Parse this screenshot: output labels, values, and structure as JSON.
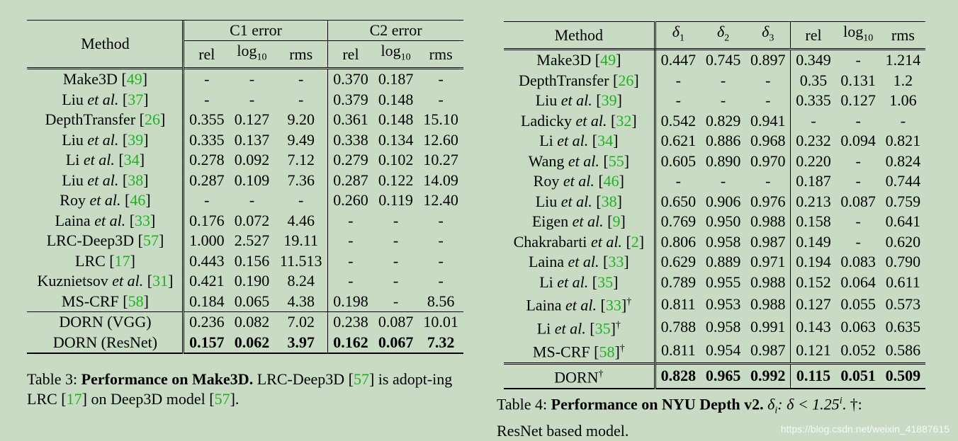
{
  "table3": {
    "method_header": "Method",
    "group1": "C1 error",
    "group2": "C2 error",
    "cols": [
      "rel",
      "log",
      "rms",
      "rel",
      "log",
      "rms"
    ],
    "log_sub": "10",
    "rows": [
      {
        "name": "Make3D",
        "etal": "",
        "ref": "49",
        "vals": [
          "-",
          "-",
          "-",
          "0.370",
          "0.187",
          "-"
        ]
      },
      {
        "name": "Liu",
        "etal": "et al.",
        "ref": "37",
        "vals": [
          "-",
          "-",
          "-",
          "0.379",
          "0.148",
          "-"
        ]
      },
      {
        "name": "DepthTransfer",
        "etal": "",
        "ref": "26",
        "vals": [
          "0.355",
          "0.127",
          "9.20",
          "0.361",
          "0.148",
          "15.10"
        ]
      },
      {
        "name": "Liu",
        "etal": "et al.",
        "ref": "39",
        "vals": [
          "0.335",
          "0.137",
          "9.49",
          "0.338",
          "0.134",
          "12.60"
        ]
      },
      {
        "name": "Li",
        "etal": "et al.",
        "ref": "34",
        "vals": [
          "0.278",
          "0.092",
          "7.12",
          "0.279",
          "0.102",
          "10.27"
        ]
      },
      {
        "name": "Liu",
        "etal": "et al.",
        "ref": "38",
        "vals": [
          "0.287",
          "0.109",
          "7.36",
          "0.287",
          "0.122",
          "14.09"
        ]
      },
      {
        "name": "Roy",
        "etal": "et al.",
        "ref": "46",
        "vals": [
          "-",
          "-",
          "-",
          "0.260",
          "0.119",
          "12.40"
        ]
      },
      {
        "name": "Laina",
        "etal": "et al.",
        "ref": "33",
        "vals": [
          "0.176",
          "0.072",
          "4.46",
          "-",
          "-",
          "-"
        ]
      },
      {
        "name": "LRC-Deep3D",
        "etal": "",
        "ref": "57",
        "vals": [
          "1.000",
          "2.527",
          "19.11",
          "-",
          "-",
          "-"
        ]
      },
      {
        "name": "LRC",
        "etal": "",
        "ref": "17",
        "vals": [
          "0.443",
          "0.156",
          "11.513",
          "-",
          "-",
          "-"
        ]
      },
      {
        "name": "Kuznietsov",
        "etal": "et al.",
        "ref": "31",
        "vals": [
          "0.421",
          "0.190",
          "8.24",
          "-",
          "-",
          "-"
        ]
      },
      {
        "name": "MS-CRF",
        "etal": "",
        "ref": "58",
        "vals": [
          "0.184",
          "0.065",
          "4.38",
          "0.198",
          "-",
          "8.56"
        ]
      }
    ],
    "ours": [
      {
        "name": "DORN (VGG)",
        "vals": [
          "0.236",
          "0.082",
          "7.02",
          "0.238",
          "0.087",
          "10.01"
        ]
      },
      {
        "name": "DORN (ResNet)",
        "vals": [
          "0.157",
          "0.062",
          "3.97",
          "0.162",
          "0.067",
          "7.32"
        ]
      }
    ]
  },
  "caption3": {
    "label": "Table 3: ",
    "bold": "Performance on Make3D.",
    "t1": " LRC-Deep3D [",
    "r1": "57",
    "t2": "] is adopt-ing LRC [",
    "r2": "17",
    "t3": "] on Deep3D model [",
    "r3": "57",
    "t4": "]."
  },
  "table4": {
    "method_header": "Method",
    "cols": [
      "δ",
      "δ",
      "δ",
      "rel",
      "log",
      "rms"
    ],
    "delta_subs": [
      "1",
      "2",
      "3"
    ],
    "log_sub": "10",
    "rows": [
      {
        "name": "Make3D",
        "etal": "",
        "ref": "49",
        "dag": "",
        "vals": [
          "0.447",
          "0.745",
          "0.897",
          "0.349",
          "-",
          "1.214"
        ]
      },
      {
        "name": "DepthTransfer",
        "etal": "",
        "ref": "26",
        "dag": "",
        "vals": [
          "-",
          "-",
          "-",
          "0.35",
          "0.131",
          "1.2"
        ]
      },
      {
        "name": "Liu",
        "etal": "et al.",
        "ref": "39",
        "dag": "",
        "vals": [
          "-",
          "-",
          "-",
          "0.335",
          "0.127",
          "1.06"
        ]
      },
      {
        "name": "Ladicky",
        "etal": "et al.",
        "ref": "32",
        "dag": "",
        "vals": [
          "0.542",
          "0.829",
          "0.941",
          "-",
          "-",
          "-"
        ]
      },
      {
        "name": "Li",
        "etal": "et al.",
        "ref": "34",
        "dag": "",
        "vals": [
          "0.621",
          "0.886",
          "0.968",
          "0.232",
          "0.094",
          "0.821"
        ]
      },
      {
        "name": "Wang",
        "etal": "et al.",
        "ref": "55",
        "dag": "",
        "vals": [
          "0.605",
          "0.890",
          "0.970",
          "0.220",
          "-",
          "0.824"
        ]
      },
      {
        "name": "Roy",
        "etal": "et al.",
        "ref": "46",
        "dag": "",
        "vals": [
          "-",
          "-",
          "-",
          "0.187",
          "-",
          "0.744"
        ]
      },
      {
        "name": "Liu",
        "etal": "et al.",
        "ref": "38",
        "dag": "",
        "vals": [
          "0.650",
          "0.906",
          "0.976",
          "0.213",
          "0.087",
          "0.759"
        ]
      },
      {
        "name": "Eigen",
        "etal": "et al.",
        "ref": "9",
        "dag": "",
        "vals": [
          "0.769",
          "0.950",
          "0.988",
          "0.158",
          "-",
          "0.641"
        ]
      },
      {
        "name": "Chakrabarti",
        "etal": "et al.",
        "ref": "2",
        "dag": "",
        "vals": [
          "0.806",
          "0.958",
          "0.987",
          "0.149",
          "-",
          "0.620"
        ]
      },
      {
        "name": "Laina",
        "etal": "et al.",
        "ref": "33",
        "dag": "",
        "vals": [
          "0.629",
          "0.889",
          "0.971",
          "0.194",
          "0.083",
          "0.790"
        ]
      },
      {
        "name": "Li",
        "etal": "et al.",
        "ref": "35",
        "dag": "",
        "vals": [
          "0.789",
          "0.955",
          "0.988",
          "0.152",
          "0.064",
          "0.611"
        ]
      },
      {
        "name": "Laina",
        "etal": "et al.",
        "ref": "33",
        "dag": "†",
        "vals": [
          "0.811",
          "0.953",
          "0.988",
          "0.127",
          "0.055",
          "0.573"
        ]
      },
      {
        "name": "Li",
        "etal": "et al.",
        "ref": "35",
        "dag": "†",
        "vals": [
          "0.788",
          "0.958",
          "0.991",
          "0.143",
          "0.063",
          "0.635"
        ]
      },
      {
        "name": "MS-CRF",
        "etal": "",
        "ref": "58",
        "dag": "†",
        "vals": [
          "0.811",
          "0.954",
          "0.987",
          "0.121",
          "0.052",
          "0.586"
        ]
      }
    ],
    "ours": {
      "name": "DORN",
      "dag": "†",
      "vals": [
        "0.828",
        "0.965",
        "0.992",
        "0.115",
        "0.051",
        "0.509"
      ]
    }
  },
  "caption4": {
    "label": "Table 4: ",
    "bold": "Performance on NYU Depth v2.",
    "t1": " δ",
    "sub": "i",
    "t2": ": δ < 1.25",
    "sup": "i",
    "t3": ".  †:",
    "t4": "ResNet based model."
  },
  "watermark": "https://blog.csdn.net/weixin_41887615",
  "colors": {
    "background": "#c7dcc3",
    "citation": "#1fb21f"
  }
}
